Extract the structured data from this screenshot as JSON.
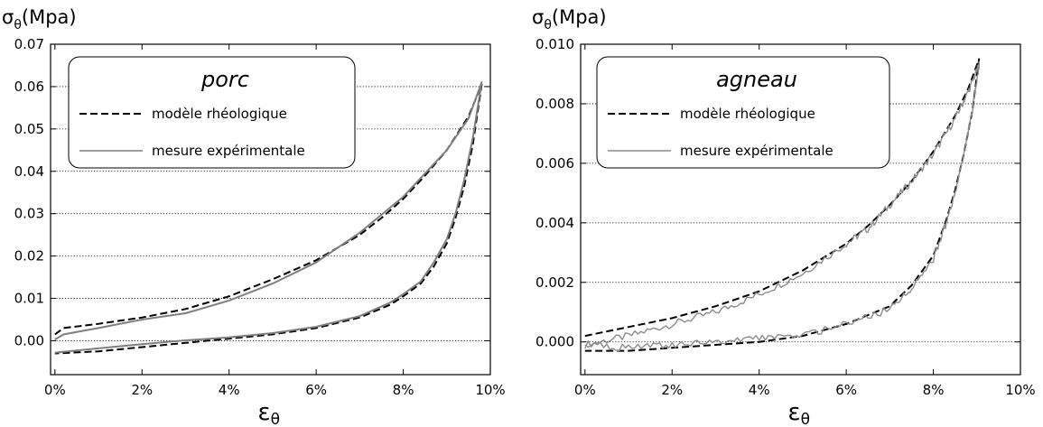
{
  "chart_data": [
    {
      "type": "line",
      "title": "porc",
      "ylabel": "σθ(Mpa)",
      "xlabel": "εθ",
      "xlim": [
        -0.1,
        10.0
      ],
      "ylim": [
        -0.008,
        0.07
      ],
      "x_ticks": [
        "0%",
        "2%",
        "4%",
        "6%",
        "8%",
        "10%"
      ],
      "x_tick_values": [
        0,
        2,
        4,
        6,
        8,
        10
      ],
      "y_ticks": [
        "0.00",
        "0.01",
        "0.02",
        "0.03",
        "0.04",
        "0.05",
        "0.06",
        "0.07"
      ],
      "y_tick_values": [
        0,
        0.01,
        0.02,
        0.03,
        0.04,
        0.05,
        0.06,
        0.07
      ],
      "grid": "horizontal dotted",
      "legend_position": "top-left",
      "series": [
        {
          "name": "modèle rhéologique",
          "style": "dashed",
          "color": "#000000",
          "x": [
            0.0,
            0.2,
            1.0,
            2.0,
            3.0,
            4.0,
            5.0,
            6.0,
            7.0,
            7.5,
            8.0,
            8.5,
            9.0,
            9.5,
            9.8,
            9.8,
            9.6,
            9.4,
            9.2,
            9.0,
            8.7,
            8.4,
            8.0,
            7.7,
            7.0,
            6.0,
            5.0,
            4.0,
            3.0,
            2.0,
            1.0,
            0.0
          ],
          "y": [
            0.0015,
            0.003,
            0.004,
            0.0055,
            0.0075,
            0.0105,
            0.0145,
            0.019,
            0.025,
            0.029,
            0.0335,
            0.039,
            0.045,
            0.053,
            0.0605,
            0.0605,
            0.0465,
            0.0365,
            0.029,
            0.023,
            0.0175,
            0.0135,
            0.0105,
            0.0085,
            0.0055,
            0.003,
            0.0015,
            0.0005,
            -0.0005,
            -0.0015,
            -0.0025,
            -0.003
          ]
        },
        {
          "name": "mesure expérimentale",
          "style": "solid",
          "color": "#7f7f7f",
          "x": [
            0.0,
            0.2,
            1.0,
            2.0,
            3.0,
            4.0,
            5.0,
            6.0,
            7.0,
            8.0,
            8.5,
            9.0,
            9.5,
            9.8,
            9.8,
            9.6,
            9.4,
            9.2,
            9.0,
            8.7,
            8.4,
            8.0,
            7.7,
            7.0,
            6.0,
            5.0,
            4.0,
            3.0,
            2.0,
            1.0,
            0.0
          ],
          "y": [
            0.0003,
            0.0015,
            0.003,
            0.005,
            0.0065,
            0.0095,
            0.0135,
            0.0185,
            0.0255,
            0.034,
            0.0395,
            0.045,
            0.0525,
            0.061,
            0.061,
            0.048,
            0.038,
            0.03,
            0.024,
            0.0185,
            0.014,
            0.011,
            0.009,
            0.0058,
            0.0033,
            0.0018,
            0.0008,
            0.0001,
            -0.0008,
            -0.0018,
            -0.0028
          ]
        }
      ]
    },
    {
      "type": "line",
      "title": "agneau",
      "ylabel": "σθ(Mpa)",
      "xlabel": "εθ",
      "xlim": [
        -0.1,
        10.0
      ],
      "ylim": [
        -0.0011,
        0.01
      ],
      "x_ticks": [
        "0%",
        "2%",
        "4%",
        "6%",
        "8%",
        "10%"
      ],
      "x_tick_values": [
        0,
        2,
        4,
        6,
        8,
        10
      ],
      "y_ticks": [
        "0.000",
        "0.002",
        "0.004",
        "0.006",
        "0.008",
        "0.010"
      ],
      "y_tick_values": [
        0,
        0.002,
        0.004,
        0.006,
        0.008,
        0.01
      ],
      "grid": "horizontal dotted",
      "legend_position": "top-left",
      "series": [
        {
          "name": "modèle rhéologique",
          "style": "dashed",
          "color": "#000000",
          "x": [
            0.0,
            1.0,
            2.0,
            3.0,
            4.0,
            5.0,
            6.0,
            6.5,
            7.0,
            7.5,
            8.0,
            8.5,
            8.8,
            9.05,
            9.05,
            8.9,
            8.7,
            8.5,
            8.3,
            8.0,
            7.5,
            7.0,
            6.0,
            5.0,
            4.0,
            3.0,
            2.0,
            1.0,
            0.0
          ],
          "y": [
            0.0002,
            0.0005,
            0.0008,
            0.0012,
            0.0017,
            0.0024,
            0.0033,
            0.0039,
            0.0046,
            0.0054,
            0.0064,
            0.0076,
            0.0085,
            0.0095,
            0.0095,
            0.0078,
            0.0063,
            0.0051,
            0.0041,
            0.0029,
            0.0019,
            0.0012,
            0.0006,
            0.0002,
            0.0,
            -0.0001,
            -0.0002,
            -0.0003,
            -0.0003
          ]
        },
        {
          "name": "mesure expérimentale",
          "style": "solid",
          "color": "#8c8c8c",
          "x": [
            0.0,
            1.0,
            2.0,
            3.0,
            4.0,
            5.0,
            6.0,
            6.5,
            7.0,
            7.5,
            8.0,
            8.5,
            8.8,
            9.05,
            9.05,
            8.9,
            8.7,
            8.5,
            8.3,
            8.0,
            7.5,
            7.0,
            6.0,
            5.0,
            4.0,
            3.0,
            2.0,
            1.0,
            0.0
          ],
          "y": [
            -0.0001,
            0.0002,
            0.0006,
            0.001,
            0.0016,
            0.0023,
            0.0033,
            0.0038,
            0.0046,
            0.0054,
            0.0063,
            0.0075,
            0.0084,
            0.0093,
            0.0093,
            0.0078,
            0.0063,
            0.005,
            0.004,
            0.0028,
            0.0018,
            0.0011,
            0.0006,
            0.0002,
            0.0001,
            0.0,
            -0.0001,
            -0.0002,
            -0.0001
          ]
        }
      ]
    }
  ]
}
